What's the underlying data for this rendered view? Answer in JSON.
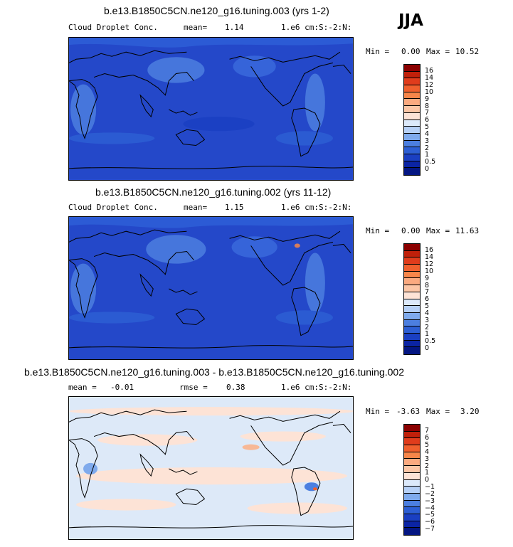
{
  "season": "JJA",
  "panels": [
    {
      "title": "b.e13.B1850C5CN.ne120_g16.tuning.003 (yrs 1-2)",
      "variable": "Cloud Droplet Conc.",
      "mean_label": "mean=",
      "mean_value": "1.14",
      "units": "1.e6 cm:S:-2:N:",
      "min_label": "Min =",
      "min_value": "0.00",
      "max_label": "Max =",
      "max_value": "10.52",
      "ocean_color": "#2448c9",
      "colorbar": {
        "colors": [
          "#8b0000",
          "#c0200a",
          "#e03c1c",
          "#f0602e",
          "#f7864a",
          "#fbaa80",
          "#fcc6a6",
          "#fde3d6",
          "#dce9fa",
          "#b6d0f6",
          "#7faaec",
          "#4c7fe0",
          "#2d5fd4",
          "#1a3fc2",
          "#0b24a4",
          "#041682"
        ],
        "labels": [
          "16",
          "14",
          "12",
          "10",
          "9",
          "8",
          "7",
          "6",
          "5",
          "4",
          "3",
          "2",
          "1",
          "0.5",
          "0"
        ]
      }
    },
    {
      "title": "b.e13.B1850C5CN.ne120_g16.tuning.002 (yrs 11-12)",
      "variable": "Cloud Droplet Conc.",
      "mean_label": "mean=",
      "mean_value": "1.15",
      "units": "1.e6 cm:S:-2:N:",
      "min_label": "Min =",
      "min_value": "0.00",
      "max_label": "Max =",
      "max_value": "11.63",
      "ocean_color": "#2448c9",
      "colorbar": {
        "colors": [
          "#8b0000",
          "#c0200a",
          "#e03c1c",
          "#f0602e",
          "#f7864a",
          "#fbaa80",
          "#fcc6a6",
          "#fde3d6",
          "#dce9fa",
          "#b6d0f6",
          "#7faaec",
          "#4c7fe0",
          "#2d5fd4",
          "#1a3fc2",
          "#0b24a4",
          "#041682"
        ],
        "labels": [
          "16",
          "14",
          "12",
          "10",
          "9",
          "8",
          "7",
          "6",
          "5",
          "4",
          "3",
          "2",
          "1",
          "0.5",
          "0"
        ]
      }
    },
    {
      "title": "b.e13.B1850C5CN.ne120_g16.tuning.003 - b.e13.B1850C5CN.ne120_g16.tuning.002",
      "mean_label": "mean =",
      "mean_value": "-0.01",
      "rmse_label": "rmse =",
      "rmse_value": "0.38",
      "units": "1.e6 cm:S:-2:N:",
      "min_label": "Min =",
      "min_value": "-3.63",
      "max_label": "Max =",
      "max_value": "3.20",
      "ocean_color": "#dde9f8",
      "colorbar": {
        "colors": [
          "#8b0000",
          "#c0200a",
          "#e03c1c",
          "#f0602e",
          "#f7864a",
          "#fbaa80",
          "#fcc6a6",
          "#fde3d6",
          "#dce9fa",
          "#b6d0f6",
          "#7faaec",
          "#4c7fe0",
          "#2d5fd4",
          "#1a3fc2",
          "#0b24a4",
          "#041682"
        ],
        "labels": [
          "7",
          "6",
          "5",
          "4",
          "3",
          "2",
          "1",
          "0",
          "−1",
          "−2",
          "−3",
          "−4",
          "−5",
          "−6",
          "−7"
        ]
      }
    }
  ]
}
